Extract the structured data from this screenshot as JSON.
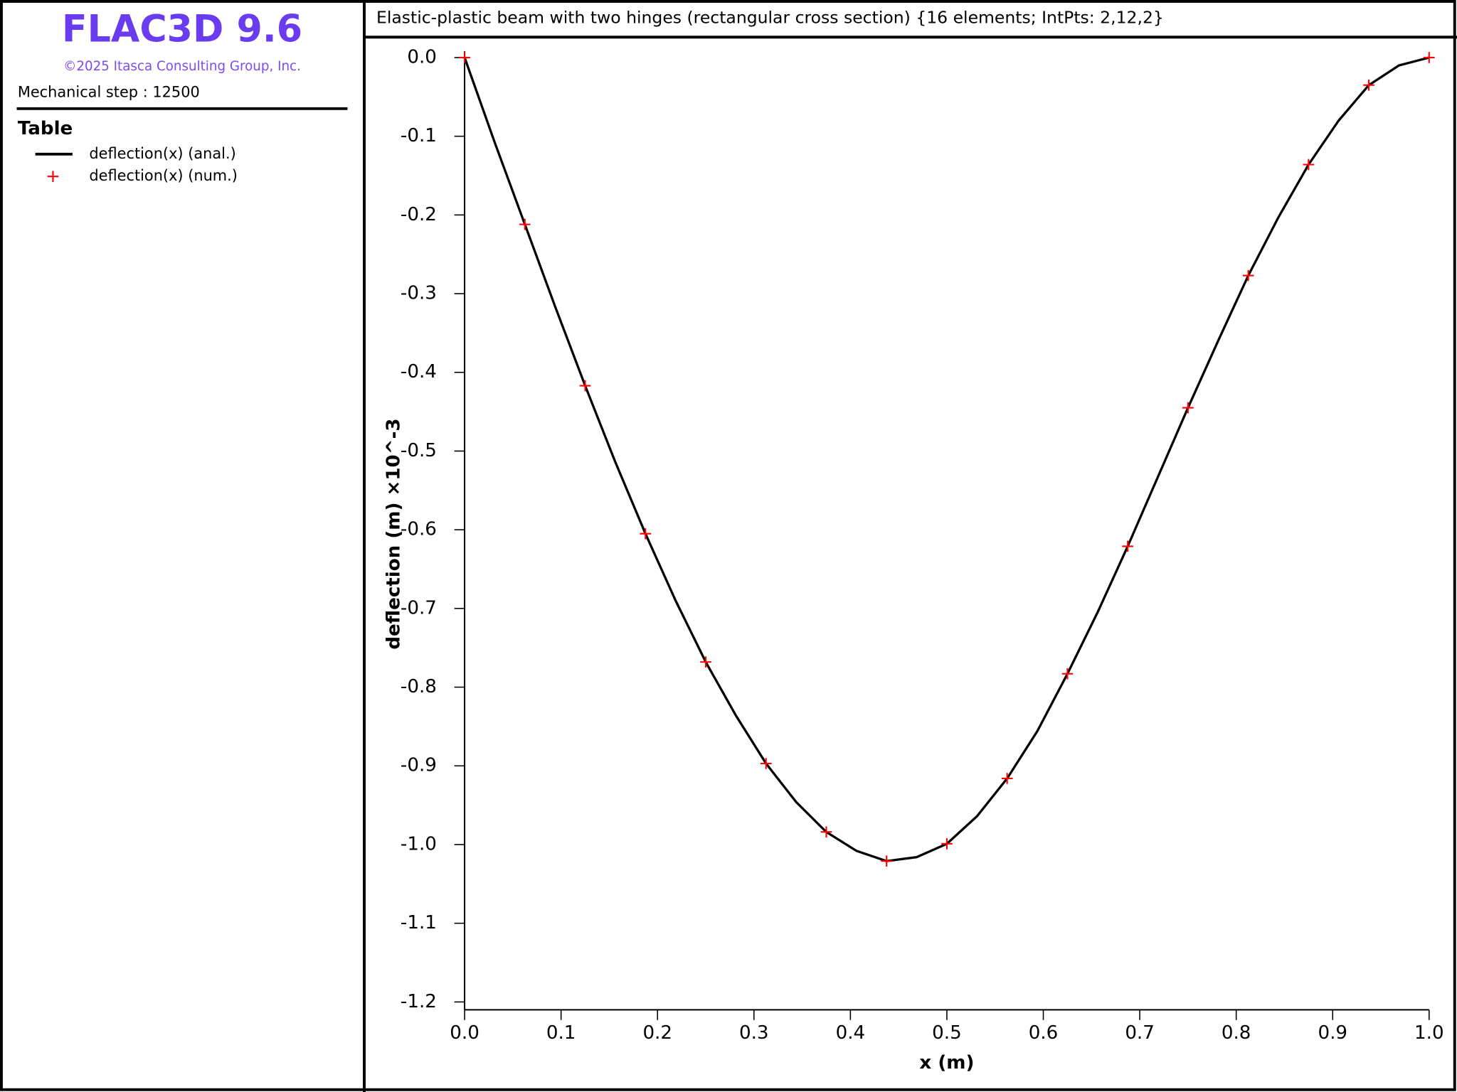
{
  "header": {
    "product": "FLAC3D 9.6",
    "copyright": "©2025 Itasca Consulting Group, Inc.",
    "step": "Mechanical step : 12500"
  },
  "chart_data": {
    "type": "line",
    "title": "Elastic-plastic beam with two hinges (rectangular cross section) {16 elements; IntPts: 2,12,2}",
    "x_label": "x (m)",
    "y_label": "deflection (m)  ×10^-3",
    "legend_title": "Table",
    "xlim": [
      0,
      1
    ],
    "ylim": [
      -1.21,
      0.008
    ],
    "xticks": [
      {
        "value": 0,
        "label": "0.0"
      },
      0.1,
      0.2,
      0.3,
      0.4,
      0.5,
      0.6,
      0.7,
      0.8,
      0.9,
      {
        "value": 1,
        "label": "1.0"
      }
    ],
    "yticks": [
      {
        "value": 0,
        "label": "0.0"
      },
      -0.1,
      -0.2,
      -0.3,
      -0.4,
      -0.5,
      -0.6,
      -0.7,
      -0.8,
      -0.9,
      {
        "value": -1,
        "label": "-1.0"
      },
      -1.1,
      -1.2
    ],
    "series": [
      {
        "name": "deflection(x) (anal.)",
        "color": "#000000",
        "style": "line",
        "x": [
          0,
          0.03125,
          0.0625,
          0.09375,
          0.125,
          0.15625,
          0.1875,
          0.21875,
          0.25,
          0.28125,
          0.3125,
          0.34375,
          0.375,
          0.40625,
          0.4375,
          0.46875,
          0.5,
          0.53125,
          0.5625,
          0.59375,
          0.625,
          0.65625,
          0.6875,
          0.71875,
          0.75,
          0.78125,
          0.8125,
          0.84375,
          0.875,
          0.90625,
          0.9375,
          0.96875,
          1
        ],
        "values": [
          0,
          -0.108,
          -0.212,
          -0.316,
          -0.417,
          -0.514,
          -0.605,
          -0.69,
          -0.768,
          -0.836,
          -0.897,
          -0.946,
          -0.984,
          -1.008,
          -1.021,
          -1.016,
          -0.999,
          -0.964,
          -0.916,
          -0.856,
          -0.783,
          -0.705,
          -0.621,
          -0.533,
          -0.445,
          -0.36,
          -0.277,
          -0.203,
          -0.136,
          -0.08,
          -0.035,
          -0.01,
          0
        ]
      },
      {
        "name": "deflection(x) (num.)",
        "color": "#ff0000",
        "style": "cross",
        "x": [
          0,
          0.0625,
          0.125,
          0.1875,
          0.25,
          0.3125,
          0.375,
          0.4375,
          0.5,
          0.5625,
          0.625,
          0.6875,
          0.75,
          0.8125,
          0.875,
          0.9375,
          1
        ],
        "values": [
          0,
          -0.212,
          -0.417,
          -0.605,
          -0.768,
          -0.897,
          -0.984,
          -1.021,
          -0.999,
          -0.916,
          -0.783,
          -0.621,
          -0.445,
          -0.277,
          -0.136,
          -0.035,
          0
        ]
      }
    ]
  }
}
